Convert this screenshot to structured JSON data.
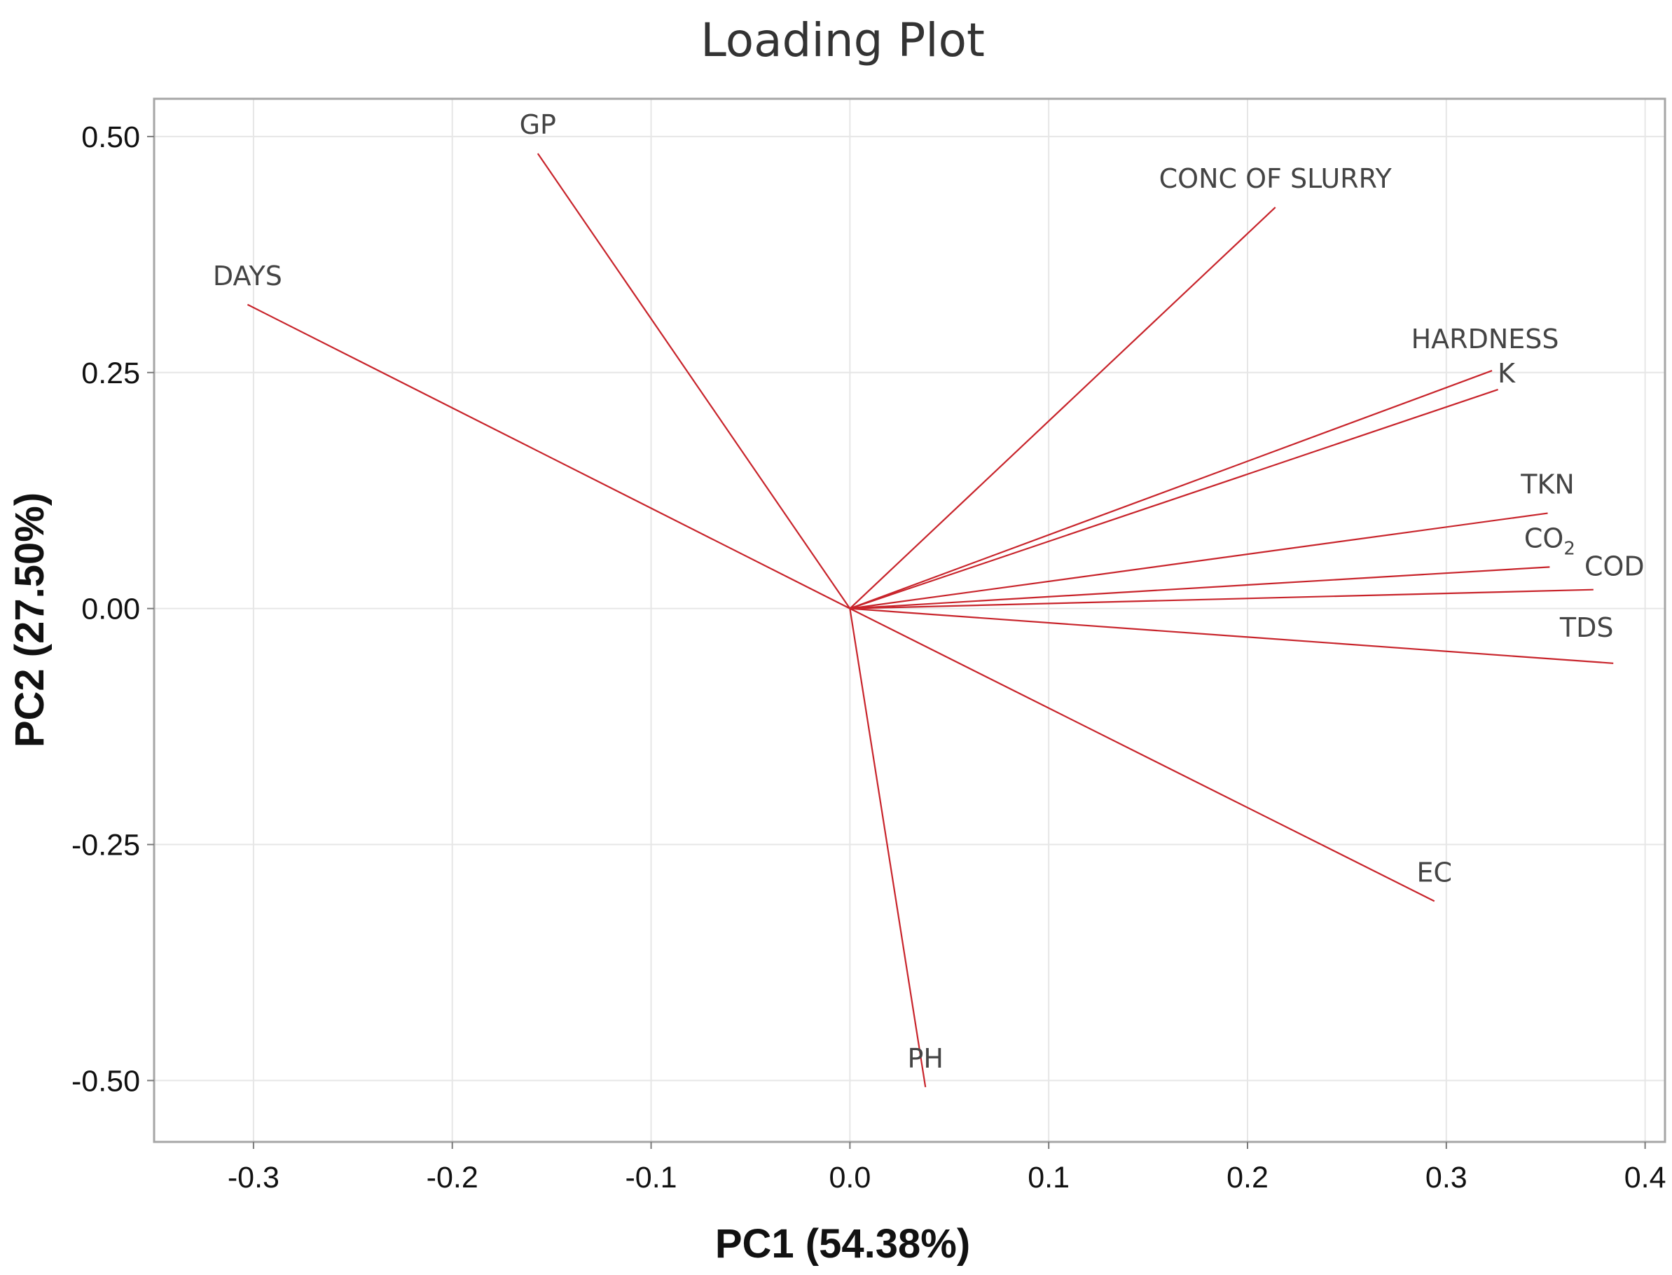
{
  "chart_data": {
    "type": "scatter",
    "subtype": "loading-plot-vectors",
    "title": "Loading Plot",
    "xlabel": "PC1 (54.38%)",
    "ylabel": "PC2 (27.50%)",
    "xlim": [
      -0.35,
      0.41
    ],
    "ylim": [
      -0.565,
      0.54
    ],
    "xticks": [
      -0.3,
      -0.2,
      -0.1,
      0.0,
      0.1,
      0.2,
      0.3,
      0.4
    ],
    "xtick_labels": [
      "-0.3",
      "-0.2",
      "-0.1",
      "0.0",
      "0.1",
      "0.2",
      "0.3",
      "0.4"
    ],
    "yticks": [
      0.5,
      0.25,
      0.0,
      -0.25,
      -0.5
    ],
    "ytick_labels": [
      "0.50",
      "0.25",
      "0.00",
      "-0.25",
      "-0.50"
    ],
    "grid": true,
    "line_color": "#c8242b",
    "variables": [
      {
        "name": "DAYS",
        "pc1": -0.303,
        "pc2": 0.322
      },
      {
        "name": "GP",
        "pc1": -0.157,
        "pc2": 0.482
      },
      {
        "name": "CONC OF SLURRY",
        "pc1": 0.214,
        "pc2": 0.425
      },
      {
        "name": "HARDNESS",
        "pc1": 0.323,
        "pc2": 0.252
      },
      {
        "name": "K",
        "pc1": 0.326,
        "pc2": 0.232
      },
      {
        "name": "TKN",
        "pc1": 0.351,
        "pc2": 0.101
      },
      {
        "name": "CO2",
        "pc1": 0.352,
        "pc2": 0.044
      },
      {
        "name": "COD",
        "pc1": 0.374,
        "pc2": 0.02
      },
      {
        "name": "TDS",
        "pc1": 0.384,
        "pc2": -0.058
      },
      {
        "name": "EC",
        "pc1": 0.294,
        "pc2": -0.31
      },
      {
        "name": "PH",
        "pc1": 0.038,
        "pc2": -0.507
      }
    ]
  }
}
